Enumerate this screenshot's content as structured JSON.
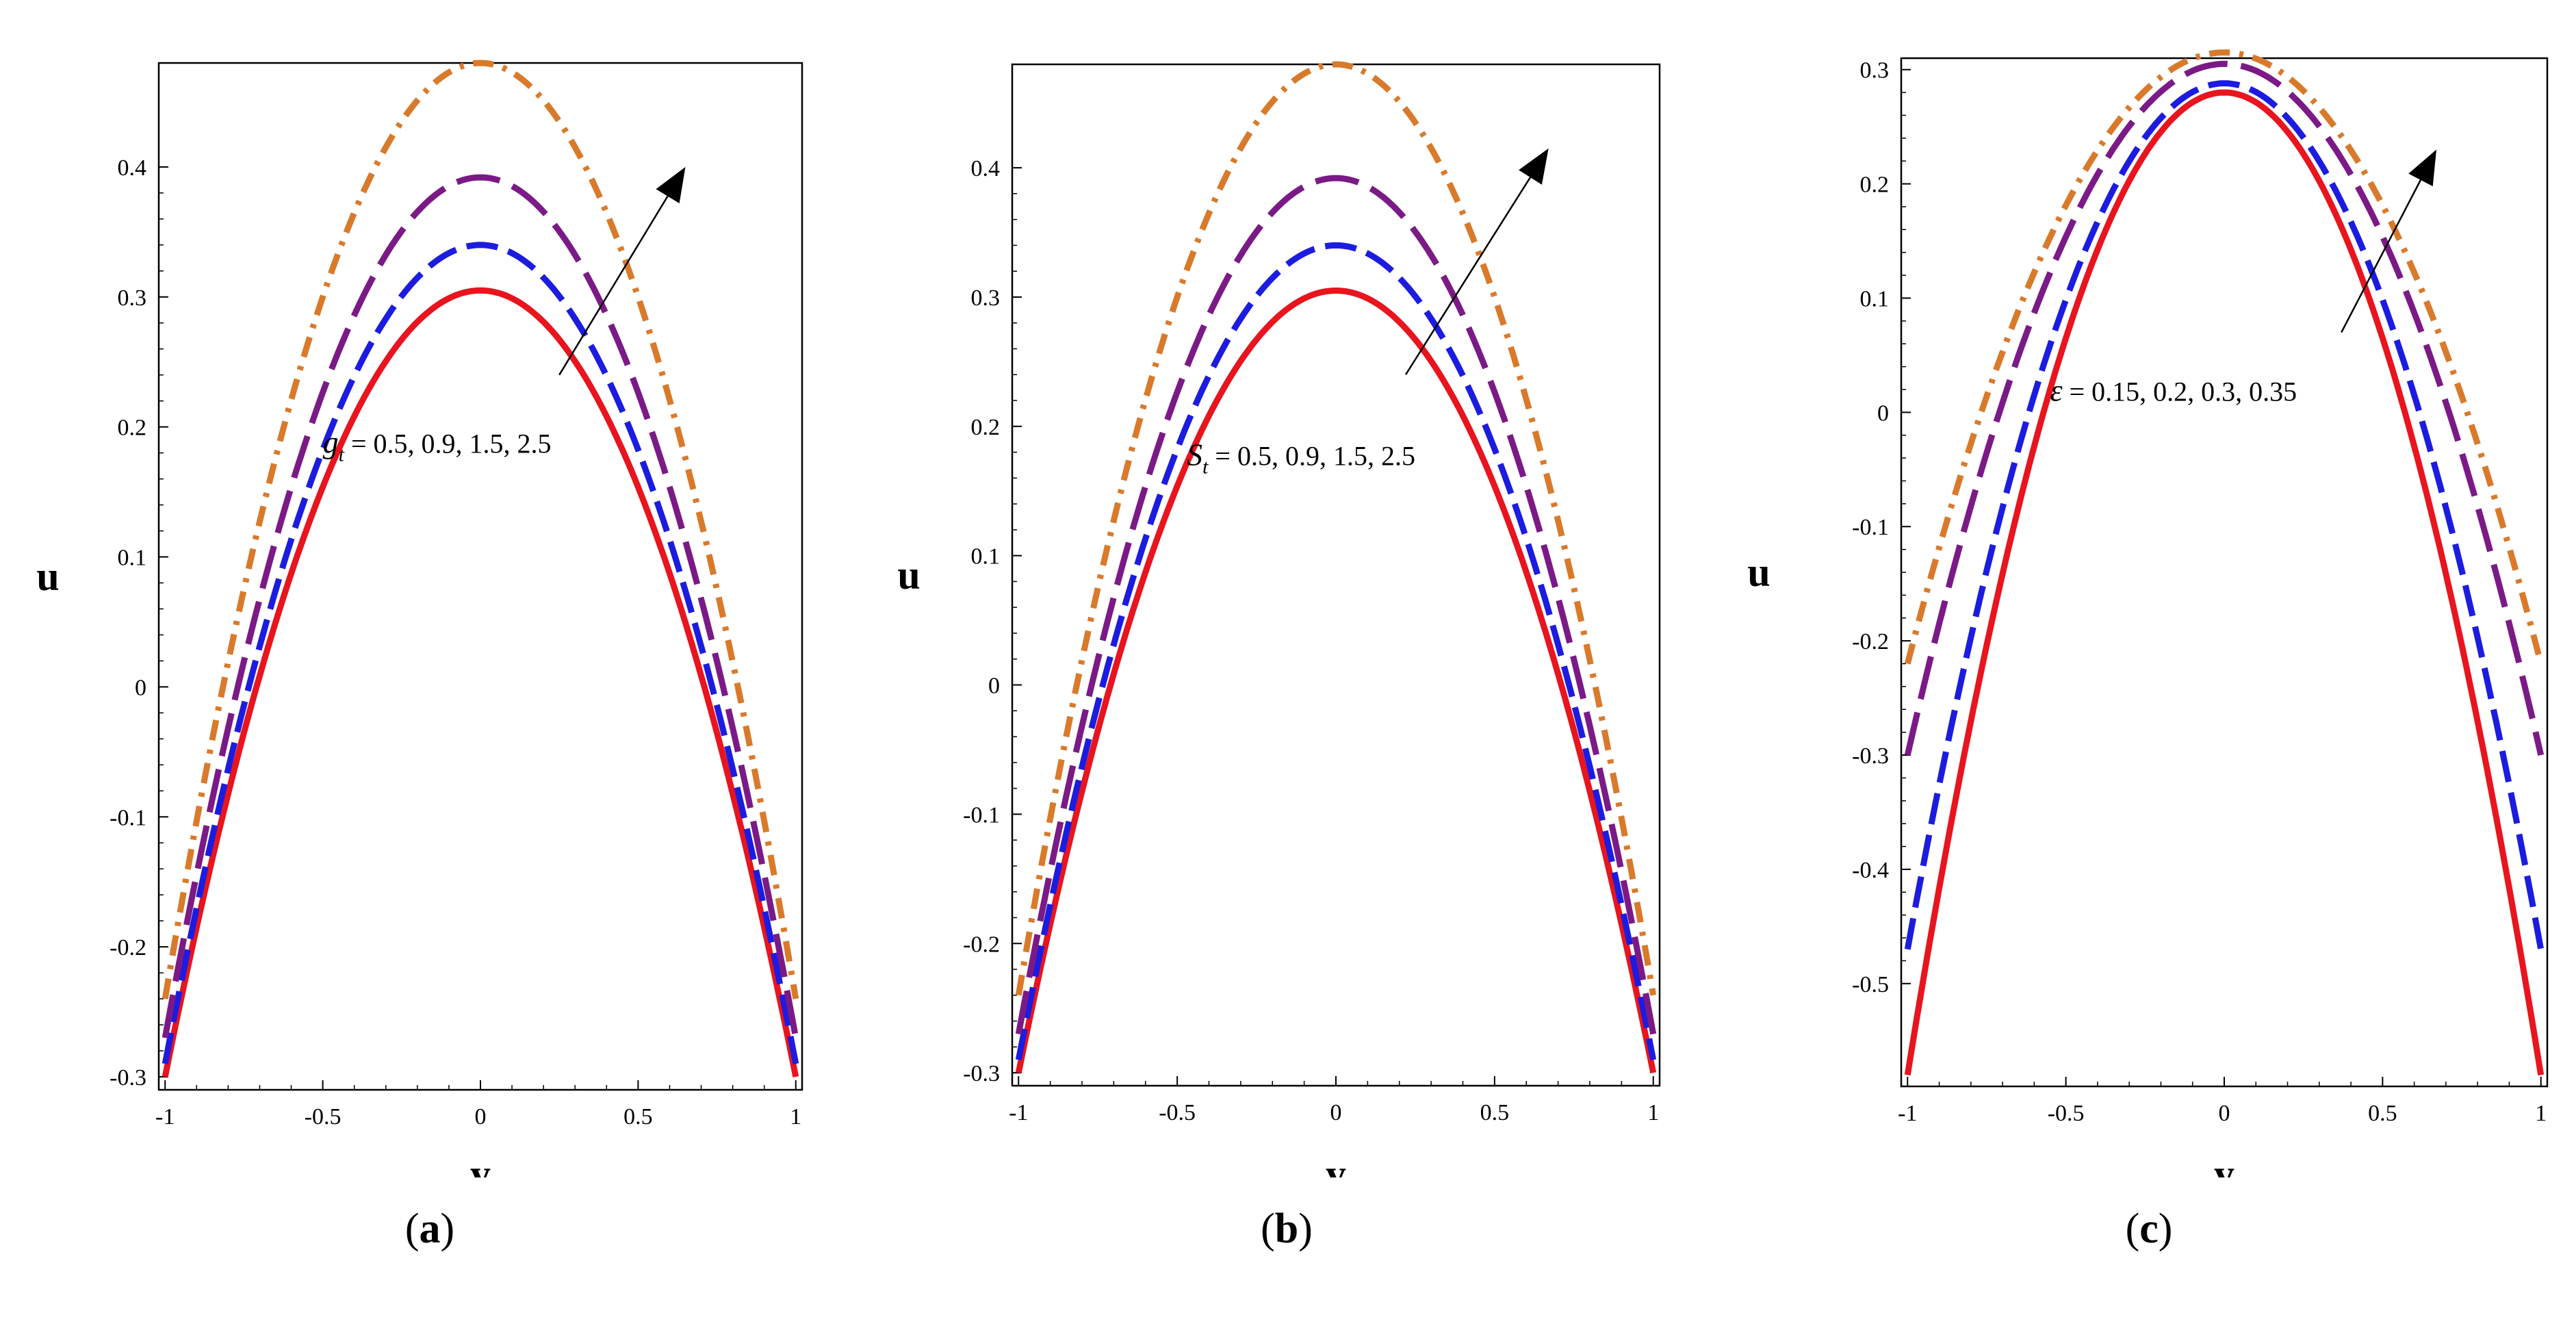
{
  "chart_data": [
    {
      "type": "line",
      "panel": "a",
      "caption": "a",
      "xlabel": "y",
      "ylabel": "u",
      "xlim": [
        -1.02,
        1.02
      ],
      "ylim": [
        -0.31,
        0.48
      ],
      "xticks": [
        -1,
        -0.5,
        0,
        0.5,
        1
      ],
      "xtick_labels": [
        "-1",
        "-0.5",
        "0",
        "0.5",
        "1"
      ],
      "yticks": [
        -0.3,
        -0.2,
        -0.1,
        0,
        0.1,
        0.2,
        0.3,
        0.4
      ],
      "ytick_labels": [
        "-0.3",
        "-0.2",
        "-0.1",
        "0",
        "0.1",
        "0.2",
        "0.3",
        "0.4"
      ],
      "annotation": {
        "symbol": "g",
        "subscript": "t",
        "text": " = 0.5, 0.9, 1.5, 2.5",
        "x": -0.5,
        "y": 0.18
      },
      "arrow": {
        "from": [
          0.25,
          0.24
        ],
        "to": [
          0.65,
          0.4
        ]
      },
      "series": [
        {
          "name": "g_t = 0.5",
          "style": "solid",
          "color": "#e8141e",
          "peak": 0.305,
          "ends": -0.3
        },
        {
          "name": "g_t = 0.9",
          "style": "dashed",
          "color": "#1c1ce0",
          "peak": 0.34,
          "ends": -0.29
        },
        {
          "name": "g_t = 1.5",
          "style": "longdash",
          "color": "#7b1a86",
          "peak": 0.392,
          "ends": -0.27
        },
        {
          "name": "g_t = 2.5",
          "style": "dashdot",
          "color": "#d97a2b",
          "peak": 0.48,
          "ends": -0.24
        }
      ]
    },
    {
      "type": "line",
      "panel": "b",
      "caption": "b",
      "xlabel": "y",
      "ylabel": "u",
      "xlim": [
        -1.02,
        1.02
      ],
      "ylim": [
        -0.31,
        0.48
      ],
      "xticks": [
        -1,
        -0.5,
        0,
        0.5,
        1
      ],
      "xtick_labels": [
        "-1",
        "-0.5",
        "0",
        "0.5",
        "1"
      ],
      "yticks": [
        -0.3,
        -0.2,
        -0.1,
        0,
        0.1,
        0.2,
        0.3,
        0.4
      ],
      "ytick_labels": [
        "-0.3",
        "-0.2",
        "-0.1",
        "0",
        "0.1",
        "0.2",
        "0.3",
        "0.4"
      ],
      "annotation": {
        "symbol": "S",
        "subscript": "t",
        "text": " = 0.5, 0.9, 1.5, 2.5",
        "x": -0.47,
        "y": 0.17
      },
      "arrow": {
        "from": [
          0.22,
          0.24
        ],
        "to": [
          0.67,
          0.415
        ]
      },
      "series": [
        {
          "name": "S_t = 0.5",
          "style": "solid",
          "color": "#e8141e",
          "peak": 0.305,
          "ends": -0.3
        },
        {
          "name": "S_t = 0.9",
          "style": "dashed",
          "color": "#1c1ce0",
          "peak": 0.34,
          "ends": -0.29
        },
        {
          "name": "S_t = 1.5",
          "style": "longdash",
          "color": "#7b1a86",
          "peak": 0.392,
          "ends": -0.27
        },
        {
          "name": "S_t = 2.5",
          "style": "dashdot",
          "color": "#d97a2b",
          "peak": 0.48,
          "ends": -0.24
        }
      ]
    },
    {
      "type": "line",
      "panel": "c",
      "caption": "c",
      "xlabel": "y",
      "ylabel": "u",
      "xlim": [
        -1.02,
        1.02
      ],
      "ylim": [
        -0.59,
        0.31
      ],
      "xticks": [
        -1,
        -0.5,
        0,
        0.5,
        1
      ],
      "xtick_labels": [
        "-1",
        "-0.5",
        "0",
        "0.5",
        "1"
      ],
      "yticks": [
        -0.5,
        -0.4,
        -0.3,
        -0.2,
        -0.1,
        0,
        0.1,
        0.2,
        0.3
      ],
      "ytick_labels": [
        "-0.5",
        "-0.4",
        "-0.3",
        "-0.2",
        "-0.1",
        "0",
        "0.1",
        "0.2",
        "0.3"
      ],
      "annotation": {
        "symbol": "ε",
        "subscript": "",
        "text": " = 0.15, 0.2, 0.3, 0.35",
        "x": -0.55,
        "y": 0.01
      },
      "arrow": {
        "from": [
          0.37,
          0.07
        ],
        "to": [
          0.67,
          0.23
        ]
      },
      "series": [
        {
          "name": "ε = 0.15",
          "style": "solid",
          "color": "#e8141e",
          "peak": 0.28,
          "ends": -0.58
        },
        {
          "name": "ε = 0.2",
          "style": "dashed",
          "color": "#1c1ce0",
          "peak": 0.288,
          "ends": -0.47
        },
        {
          "name": "ε = 0.3",
          "style": "longdash",
          "color": "#7b1a86",
          "peak": 0.305,
          "ends": -0.3
        },
        {
          "name": "ε = 0.35",
          "style": "dashdot",
          "color": "#d97a2b",
          "peak": 0.315,
          "ends": -0.22
        }
      ]
    }
  ]
}
